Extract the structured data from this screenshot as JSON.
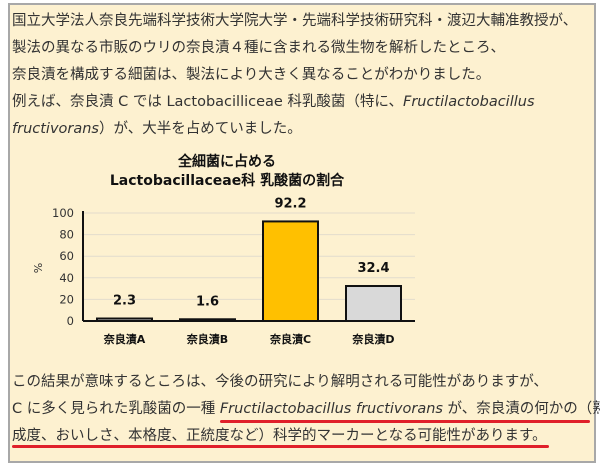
{
  "intro": {
    "lines": [
      "国立大学法人奈良先端科学技術大学院大学・先端科学技術研究科・渡辺大輔准教授が、",
      "製法の異なる市販のウリの奈良漬４種に含まれる微生物を解析したところ、",
      "奈良漬を構成する細菌は、製法により大きく異なることがわかりました。"
    ],
    "line4_a": "例えば、奈良漬 C では Lactobacilliceae  科乳酸菌（特に、",
    "line4_italic": "Fructilactobacillus",
    "line5_italic": "fructivorans",
    "line5_b": "）が、大半を占めていました。"
  },
  "chart_data": {
    "type": "bar",
    "title": [
      "全細菌に占める",
      "Lactobacillaceae科 乳酸菌の割合"
    ],
    "categories": [
      "奈良漬A",
      "奈良漬B",
      "奈良漬C",
      "奈良漬D"
    ],
    "values": [
      2.3,
      1.6,
      92.2,
      32.4
    ],
    "data_labels": [
      "2.3",
      "1.6",
      "92.2",
      "32.4"
    ],
    "colors": [
      "#d8d8d8",
      "#d8d8d8",
      "#ffc000",
      "#d9d9d9"
    ],
    "ylabel": "%",
    "ylim": [
      0,
      100
    ],
    "yticks": [
      0,
      20,
      40,
      60,
      80,
      100
    ],
    "grid": true
  },
  "conclusion": {
    "line1": "この結果が意味するところは、今後の研究により解明される可能性がありますが、",
    "line2_a": "C に多く見られた乳酸菌の一種 ",
    "line2_italic": "Fructilactobacillus fructivorans",
    "line2_b": " が、奈良漬の何かの（熟",
    "line3": "成度、おいしさ、本格度、正統度など）科学的マーカーとなる可能性があります。",
    "underline_color": "#e0202a"
  }
}
